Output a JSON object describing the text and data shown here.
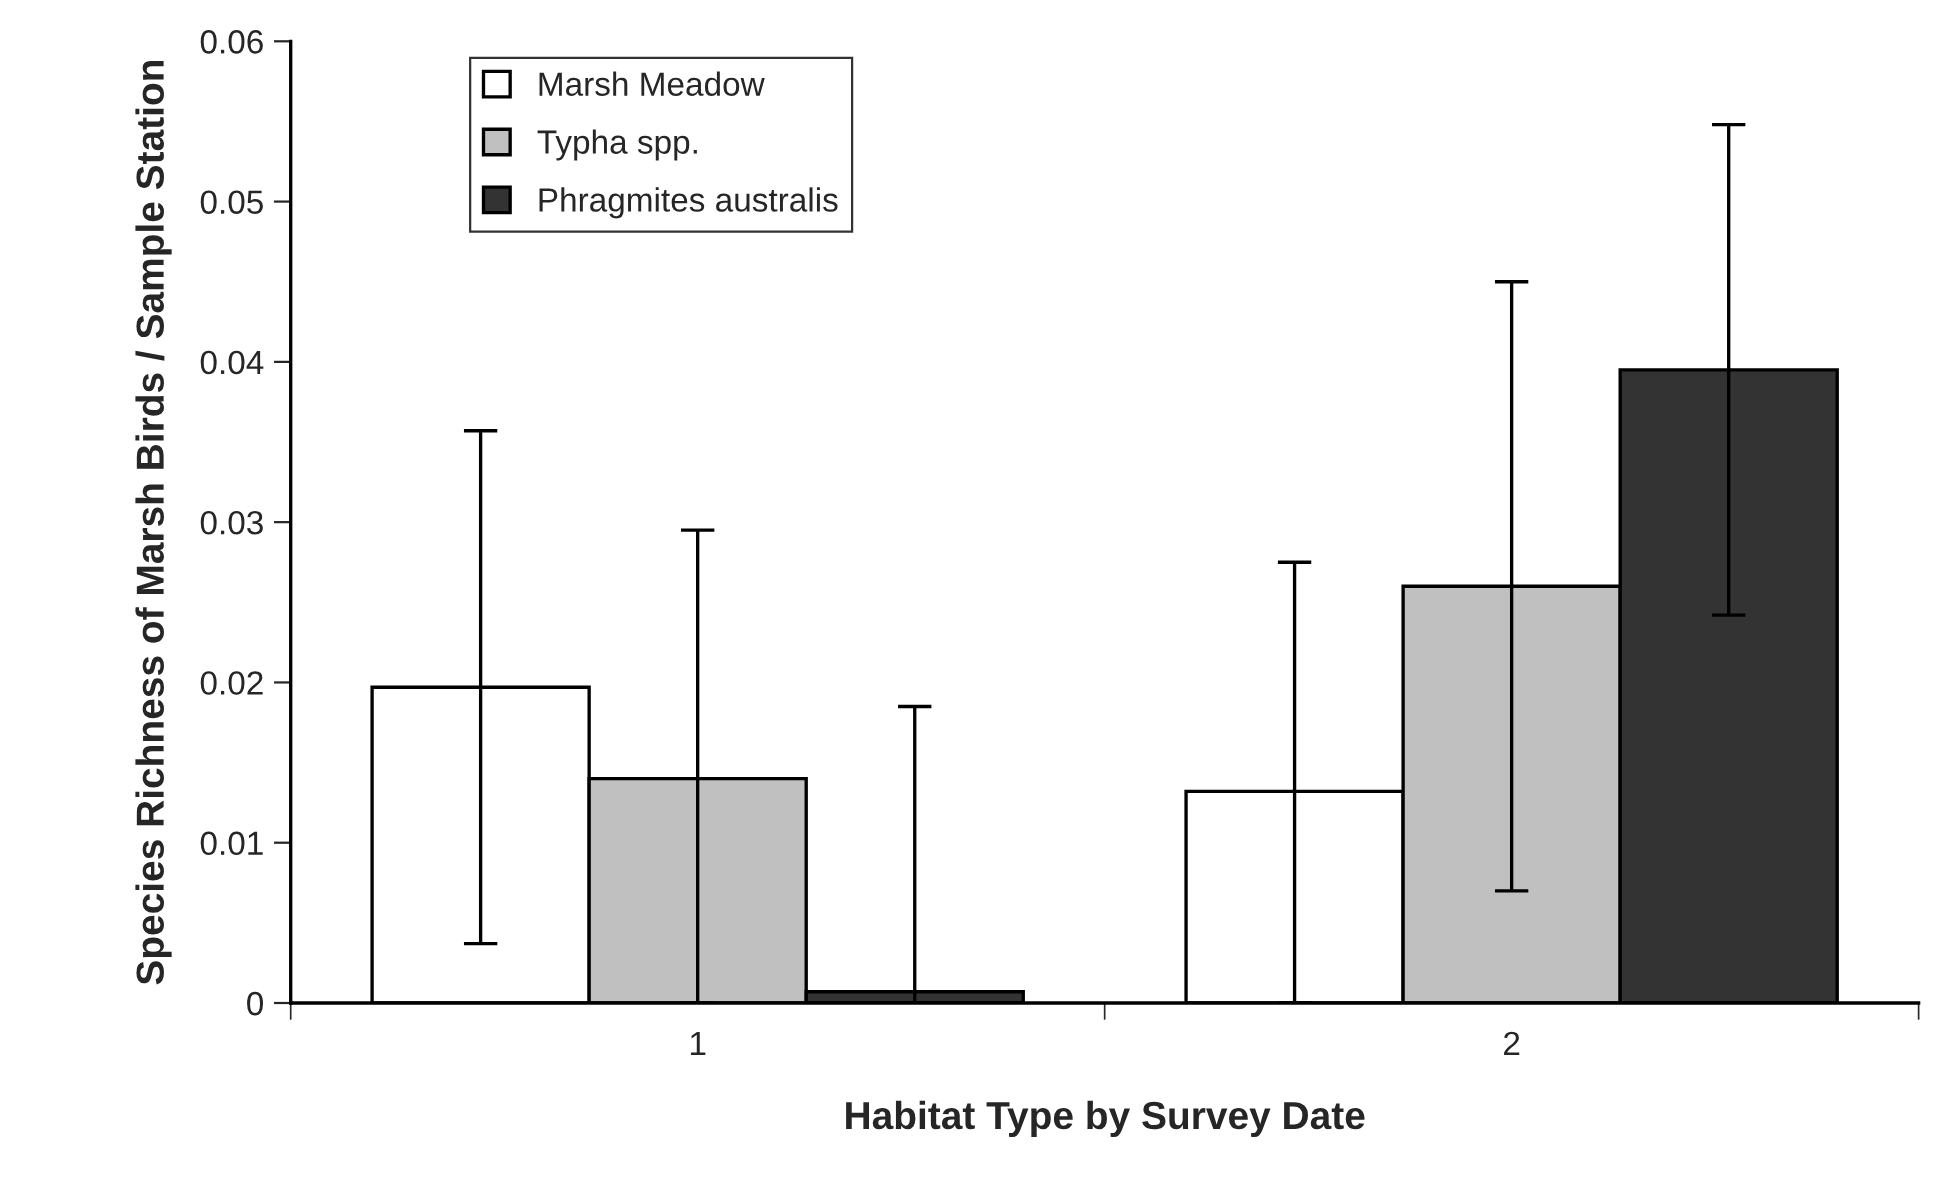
{
  "chart_data": {
    "type": "bar",
    "xlabel": "Habitat Type by Survey Date",
    "ylabel": "Species Richness of Marsh Birds / Sample Station",
    "categories": [
      "1",
      "2"
    ],
    "series": [
      {
        "name": "Marsh Meadow",
        "color": "#ffffff",
        "values": [
          0.0197,
          0.0132
        ],
        "errors": [
          0.016,
          [
            0,
            0.0275
          ]
        ]
      },
      {
        "name": "Typha spp.",
        "color": "#c0c0c0",
        "values": [
          0.014,
          0.026
        ],
        "errors": [
          [
            0,
            0.0295
          ],
          0.019
        ]
      },
      {
        "name": "Phragmites australis",
        "color": "#333333",
        "values": [
          0.0007,
          0.0395
        ],
        "errors": [
          [
            0,
            0.0185
          ],
          0.0153
        ]
      }
    ],
    "ylim": [
      0,
      0.06
    ],
    "yticks": [
      {
        "value": 0,
        "label": "0"
      },
      0.01,
      0.02,
      0.03,
      0.04,
      0.05,
      0.06
    ],
    "grid": false,
    "legend": "top left"
  }
}
